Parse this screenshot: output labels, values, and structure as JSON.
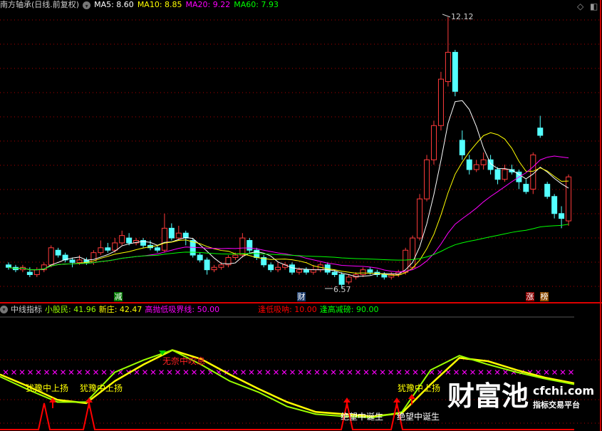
{
  "header": {
    "title": "南方轴承(日线.前复权)",
    "ma5": "MA5: 8.60",
    "ma10": "MA10: 8.85",
    "ma20": "MA20: 9.22",
    "ma60": "MA60: 7.93"
  },
  "colors": {
    "up": "#ff3b3b",
    "down": "#54ffff",
    "ma5": "#ffffff",
    "ma10": "#ffff00",
    "ma20": "#ff00ff",
    "ma60": "#00ff00",
    "grid": "#b00000",
    "line_green": "#99ff00",
    "line_yellow": "#ffff00"
  },
  "price_labels": {
    "high": "12.12",
    "low": "6.57"
  },
  "markers": [
    {
      "text": "减",
      "bg": "#007a00"
    },
    {
      "text": "财",
      "bg": "#1a3a6a"
    },
    {
      "text": "涨",
      "bg": "#8b0000"
    },
    {
      "text": "榜",
      "bg": "#8b4a00"
    }
  ],
  "indicator": {
    "name": "中线指标",
    "v1": "小股民: 41.96",
    "v2": "新庄: 42.47",
    "v3": "高抛低吸界线: 50.00",
    "v4": "逢低吸呐: 10.00",
    "v5": "逢高减磅: 90.00"
  },
  "signals": {
    "s1": "犹豫中上扬",
    "s2": "犹豫中上扬",
    "s3": "无奈中叹息",
    "s4": "绝望中诞生",
    "s5": "绝望中诞生",
    "s6": "犹豫中上扬"
  },
  "watermark": {
    "brand": "财富池",
    "domain": "cfchi.com",
    "tagline": "指标交易平台"
  },
  "candles": [
    [
      7.05,
      7.0,
      7.1,
      6.95
    ],
    [
      7.0,
      6.95,
      7.05,
      6.9
    ],
    [
      6.95,
      7.0,
      7.05,
      6.9
    ],
    [
      6.9,
      6.85,
      7.0,
      6.8
    ],
    [
      6.85,
      6.95,
      7.0,
      6.8
    ],
    [
      6.95,
      7.05,
      7.1,
      6.9
    ],
    [
      7.05,
      7.4,
      7.45,
      7.0
    ],
    [
      7.35,
      7.25,
      7.4,
      7.2
    ],
    [
      7.25,
      7.15,
      7.3,
      7.1
    ],
    [
      7.15,
      7.1,
      7.2,
      7.0
    ],
    [
      7.1,
      7.15,
      7.25,
      7.05
    ],
    [
      7.15,
      7.1,
      7.2,
      7.05
    ],
    [
      7.1,
      7.3,
      7.35,
      7.05
    ],
    [
      7.3,
      7.4,
      7.55,
      7.25
    ],
    [
      7.4,
      7.35,
      7.5,
      7.3
    ],
    [
      7.35,
      7.5,
      7.6,
      7.3
    ],
    [
      7.5,
      7.65,
      7.75,
      7.45
    ],
    [
      7.6,
      7.5,
      7.7,
      7.45
    ],
    [
      7.5,
      7.55,
      7.6,
      7.45
    ],
    [
      7.55,
      7.45,
      7.6,
      7.4
    ],
    [
      7.45,
      7.4,
      7.55,
      7.35
    ],
    [
      7.4,
      7.35,
      7.45,
      7.3
    ],
    [
      7.35,
      7.8,
      8.1,
      7.3
    ],
    [
      7.8,
      7.6,
      7.9,
      7.55
    ],
    [
      7.6,
      7.7,
      7.85,
      7.55
    ],
    [
      7.7,
      7.6,
      7.75,
      7.45
    ],
    [
      7.55,
      7.25,
      7.6,
      7.2
    ],
    [
      7.25,
      7.15,
      7.3,
      7.1
    ],
    [
      7.15,
      6.95,
      7.2,
      6.85
    ],
    [
      6.95,
      7.0,
      7.05,
      6.9
    ],
    [
      7.0,
      7.05,
      7.1,
      6.95
    ],
    [
      7.05,
      7.2,
      7.25,
      7.0
    ],
    [
      7.2,
      7.25,
      7.3,
      7.15
    ],
    [
      7.25,
      7.6,
      7.7,
      7.2
    ],
    [
      7.55,
      7.35,
      7.6,
      7.3
    ],
    [
      7.35,
      7.2,
      7.4,
      7.15
    ],
    [
      7.2,
      7.05,
      7.25,
      7.0
    ],
    [
      7.05,
      6.95,
      7.1,
      6.9
    ],
    [
      6.95,
      7.0,
      7.1,
      6.9
    ],
    [
      7.0,
      7.05,
      7.1,
      6.95
    ],
    [
      7.05,
      6.9,
      7.1,
      6.85
    ],
    [
      6.9,
      6.95,
      7.0,
      6.85
    ],
    [
      6.95,
      6.9,
      7.0,
      6.85
    ],
    [
      6.9,
      6.95,
      7.05,
      6.85
    ],
    [
      6.95,
      7.05,
      7.1,
      6.9
    ],
    [
      7.05,
      6.9,
      7.1,
      6.85
    ],
    [
      6.9,
      6.85,
      6.95,
      6.8
    ],
    [
      6.85,
      6.65,
      6.9,
      6.57
    ],
    [
      6.7,
      6.8,
      6.85,
      6.65
    ],
    [
      6.8,
      6.85,
      6.9,
      6.75
    ],
    [
      6.85,
      6.95,
      7.0,
      6.8
    ],
    [
      6.95,
      6.9,
      7.0,
      6.85
    ],
    [
      6.9,
      6.85,
      6.95,
      6.8
    ],
    [
      6.85,
      6.8,
      6.9,
      6.75
    ],
    [
      6.8,
      6.85,
      6.9,
      6.75
    ],
    [
      6.85,
      6.9,
      6.95,
      6.8
    ],
    [
      6.9,
      7.35,
      7.4,
      6.85
    ],
    [
      7.0,
      7.6,
      7.65,
      6.95
    ],
    [
      7.6,
      8.4,
      8.5,
      7.55
    ],
    [
      8.4,
      9.2,
      9.3,
      8.35
    ],
    [
      9.2,
      9.9,
      10.0,
      9.1
    ],
    [
      9.9,
      10.85,
      11.0,
      9.8
    ],
    [
      10.8,
      11.4,
      12.12,
      10.7
    ],
    [
      11.4,
      10.6,
      11.45,
      10.5
    ],
    [
      9.6,
      9.3,
      9.8,
      9.2
    ],
    [
      9.2,
      9.0,
      9.3,
      8.9
    ],
    [
      9.0,
      9.1,
      9.2,
      8.95
    ],
    [
      9.1,
      9.2,
      9.35,
      9.0
    ],
    [
      9.2,
      9.0,
      9.3,
      8.9
    ],
    [
      9.0,
      8.8,
      9.05,
      8.7
    ],
    [
      8.8,
      9.0,
      9.1,
      8.75
    ],
    [
      9.0,
      8.95,
      9.1,
      8.9
    ],
    [
      8.95,
      8.75,
      9.0,
      8.6
    ],
    [
      8.7,
      8.55,
      8.8,
      8.5
    ],
    [
      8.6,
      9.3,
      9.35,
      8.5
    ],
    [
      9.85,
      9.7,
      10.1,
      9.65
    ],
    [
      8.7,
      8.45,
      8.75,
      8.4
    ],
    [
      8.45,
      8.1,
      8.5,
      8.0
    ],
    [
      8.1,
      8.0,
      8.25,
      7.8
    ],
    [
      7.95,
      8.85,
      8.9,
      7.85
    ]
  ],
  "indicator_series": {
    "small_investor": [
      46,
      34,
      23,
      23,
      50,
      61,
      70,
      57,
      42,
      32,
      19,
      12,
      10,
      9,
      14,
      52,
      65,
      57,
      50,
      44,
      39
    ],
    "new_dealer": [
      48,
      37,
      25,
      22,
      42,
      57,
      70,
      62,
      48,
      35,
      23,
      14,
      12,
      10,
      13,
      39,
      63,
      60,
      52,
      45,
      40
    ],
    "threshold": 50
  }
}
